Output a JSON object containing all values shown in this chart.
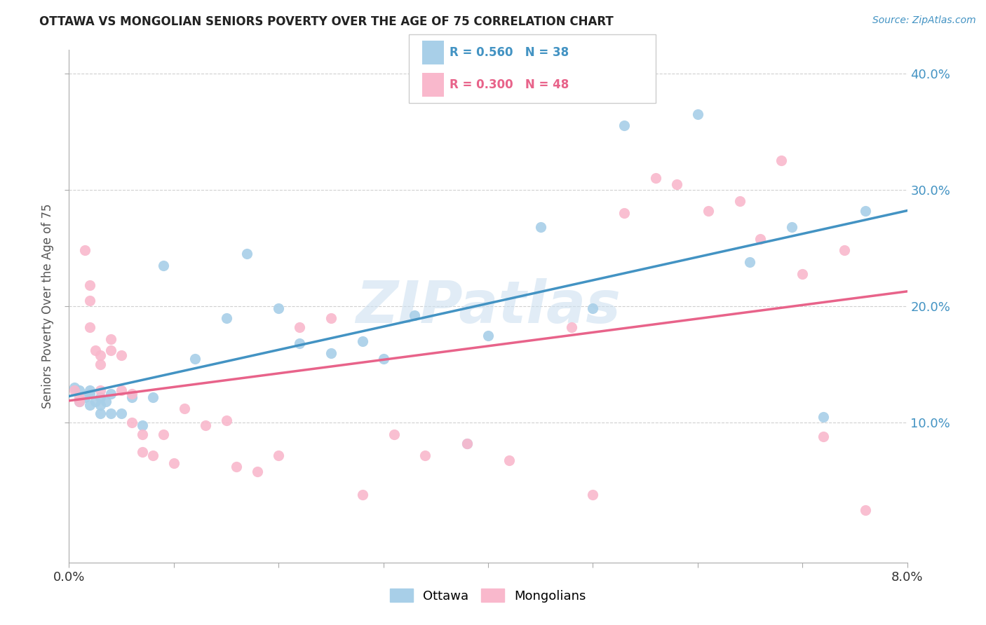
{
  "title": "OTTAWA VS MONGOLIAN SENIORS POVERTY OVER THE AGE OF 75 CORRELATION CHART",
  "source": "Source: ZipAtlas.com",
  "ylabel": "Seniors Poverty Over the Age of 75",
  "xlim": [
    0.0,
    0.08
  ],
  "ylim": [
    -0.02,
    0.42
  ],
  "yticks": [
    0.1,
    0.2,
    0.3,
    0.4
  ],
  "ytick_labels": [
    "10.0%",
    "20.0%",
    "30.0%",
    "40.0%"
  ],
  "xticks": [
    0.0,
    0.01,
    0.02,
    0.03,
    0.04,
    0.05,
    0.06,
    0.07,
    0.08
  ],
  "ottawa_color": "#a8cfe8",
  "mongolian_color": "#f9b8cc",
  "ottawa_line_color": "#4393c3",
  "mongolian_line_color": "#e8638a",
  "ottawa_R": 0.56,
  "ottawa_N": 38,
  "mongolian_R": 0.3,
  "mongolian_N": 48,
  "ottawa_x": [
    0.0005,
    0.001,
    0.001,
    0.0015,
    0.002,
    0.002,
    0.002,
    0.0025,
    0.003,
    0.003,
    0.003,
    0.0035,
    0.004,
    0.004,
    0.005,
    0.006,
    0.007,
    0.008,
    0.009,
    0.012,
    0.015,
    0.017,
    0.02,
    0.022,
    0.025,
    0.028,
    0.03,
    0.033,
    0.038,
    0.04,
    0.045,
    0.05,
    0.053,
    0.06,
    0.065,
    0.069,
    0.072,
    0.076
  ],
  "ottawa_y": [
    0.13,
    0.118,
    0.128,
    0.122,
    0.115,
    0.125,
    0.128,
    0.118,
    0.108,
    0.115,
    0.122,
    0.118,
    0.108,
    0.125,
    0.108,
    0.122,
    0.098,
    0.122,
    0.235,
    0.155,
    0.19,
    0.245,
    0.198,
    0.168,
    0.16,
    0.17,
    0.155,
    0.192,
    0.082,
    0.175,
    0.268,
    0.198,
    0.355,
    0.365,
    0.238,
    0.268,
    0.105,
    0.282
  ],
  "mongolian_x": [
    0.0005,
    0.001,
    0.001,
    0.0015,
    0.002,
    0.002,
    0.002,
    0.0025,
    0.003,
    0.003,
    0.003,
    0.004,
    0.004,
    0.005,
    0.005,
    0.006,
    0.006,
    0.007,
    0.007,
    0.008,
    0.009,
    0.01,
    0.011,
    0.013,
    0.015,
    0.016,
    0.018,
    0.02,
    0.022,
    0.025,
    0.028,
    0.031,
    0.034,
    0.038,
    0.042,
    0.048,
    0.05,
    0.053,
    0.056,
    0.058,
    0.061,
    0.064,
    0.066,
    0.068,
    0.07,
    0.072,
    0.074,
    0.076
  ],
  "mongolian_y": [
    0.128,
    0.122,
    0.118,
    0.248,
    0.218,
    0.205,
    0.182,
    0.162,
    0.158,
    0.15,
    0.128,
    0.172,
    0.162,
    0.158,
    0.128,
    0.125,
    0.1,
    0.09,
    0.075,
    0.072,
    0.09,
    0.065,
    0.112,
    0.098,
    0.102,
    0.062,
    0.058,
    0.072,
    0.182,
    0.19,
    0.038,
    0.09,
    0.072,
    0.082,
    0.068,
    0.182,
    0.038,
    0.28,
    0.31,
    0.305,
    0.282,
    0.29,
    0.258,
    0.325,
    0.228,
    0.088,
    0.248,
    0.025
  ],
  "watermark": "ZIPatlas",
  "background_color": "#ffffff",
  "grid_color": "#d0d0d0"
}
